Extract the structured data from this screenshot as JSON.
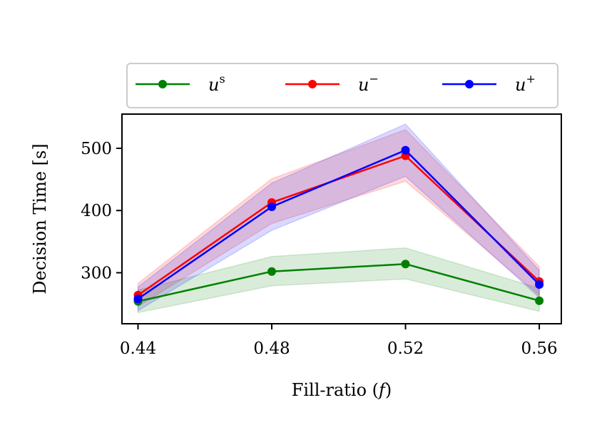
{
  "chart_data": {
    "type": "line",
    "x": [
      0.44,
      0.48,
      0.52,
      0.56
    ],
    "xtick_labels": [
      "0.44",
      "0.48",
      "0.52",
      "0.56"
    ],
    "xlabel_main": "Fill-ratio (",
    "xlabel_var": "f",
    "xlabel_end": ")",
    "ylabel": "Decision Time [s]",
    "ylim": [
      218,
      555
    ],
    "yticks": [
      300,
      400,
      500
    ],
    "ytick_labels": [
      "300",
      "400",
      "500"
    ],
    "grid": false,
    "legend_position": "top (above plot)",
    "series": [
      {
        "name": "u",
        "name_sup": "s",
        "color": "#008000",
        "values": [
          254,
          302,
          314,
          255
        ],
        "lower": [
          236,
          279,
          290,
          238
        ],
        "upper": [
          272,
          326,
          340,
          275
        ]
      },
      {
        "name": "u",
        "name_sup": "−",
        "color": "#ff0000",
        "values": [
          264,
          413,
          488,
          286
        ],
        "lower": [
          246,
          379,
          447,
          264
        ],
        "upper": [
          283,
          451,
          530,
          310
        ]
      },
      {
        "name": "u",
        "name_sup": "+",
        "color": "#0000ff",
        "values": [
          258,
          406,
          497,
          281
        ],
        "lower": [
          239,
          368,
          455,
          260
        ],
        "upper": [
          277,
          444,
          539,
          304
        ]
      }
    ]
  }
}
